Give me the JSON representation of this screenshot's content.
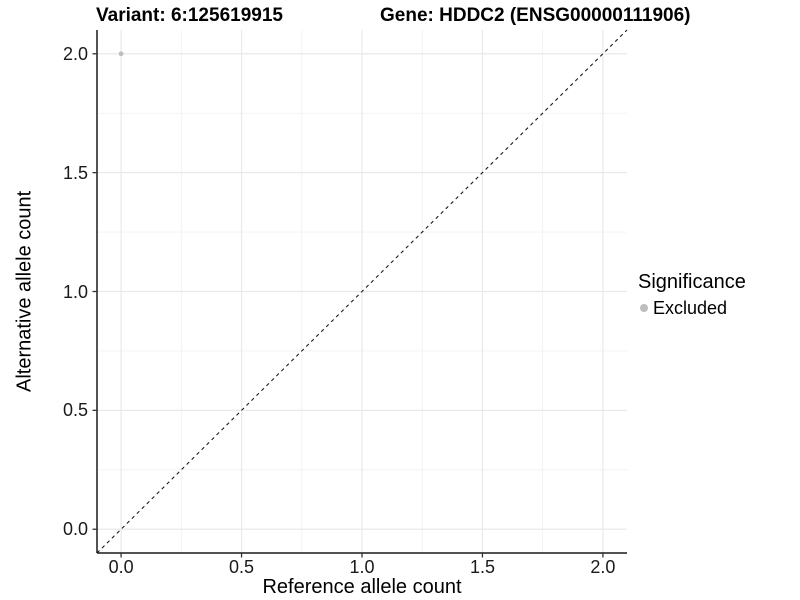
{
  "chart_data": {
    "type": "scatter",
    "title_variant": "Variant: 6:125619915",
    "title_gene": "Gene: HDDC2 (ENSG00000111906)",
    "xlabel": "Reference allele count",
    "ylabel": "Alternative allele count",
    "xlim": [
      -0.1,
      2.1
    ],
    "ylim": [
      -0.1,
      2.1
    ],
    "x_ticks": [
      0.0,
      0.5,
      1.0,
      1.5,
      2.0
    ],
    "x_tick_labels": [
      "0.0",
      "0.5",
      "1.0",
      "1.5",
      "2.0"
    ],
    "y_ticks": [
      0.0,
      0.5,
      1.0,
      1.5,
      2.0
    ],
    "y_tick_labels": [
      "0.0",
      "0.5",
      "1.0",
      "1.5",
      "2.0"
    ],
    "minor_ticks": [
      0.25,
      0.75,
      1.25,
      1.75
    ],
    "grid": true,
    "points": [
      {
        "x": 0.0,
        "y": 2.0,
        "series": "Excluded"
      }
    ],
    "reference_line": {
      "style": "dashed",
      "from": [
        -0.1,
        -0.1
      ],
      "to": [
        2.1,
        2.1
      ]
    },
    "legend": {
      "title": "Significance",
      "position": "right",
      "items": [
        {
          "label": "Excluded",
          "color": "#bebebe"
        }
      ]
    },
    "colors": {
      "point": "#bebebe",
      "grid_major": "#e9e9e9",
      "grid_minor": "#f3f3f3",
      "axis_line": "#1a1a1a",
      "tick": "#333333",
      "reference_line": "#1a1a1a",
      "background": "#ffffff"
    }
  }
}
